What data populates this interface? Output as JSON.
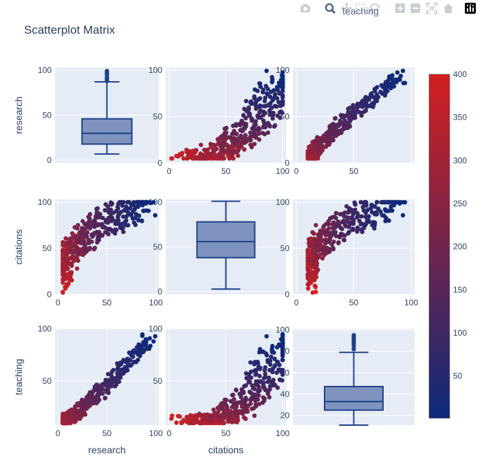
{
  "title": "Scatterplot Matrix",
  "modebar": {
    "hover_label": "teaching",
    "icons": [
      "camera-icon",
      "zoom-icon",
      "pan-icon",
      "box-select-icon",
      "lasso-icon",
      "zoom-in-icon",
      "zoom-out-icon",
      "autoscale-icon",
      "reset-axes-icon",
      "plotly-logo-icon"
    ]
  },
  "chart_data": {
    "type": "scatter-matrix",
    "title": "Scatterplot Matrix",
    "dimensions": [
      "research",
      "citations",
      "teaching"
    ],
    "diagonal": "box",
    "colors": {
      "low": "#0d2a7a",
      "high": "#d41f1f",
      "box": "#1f3f88",
      "box_fill": "#7f93bf",
      "plot_bg": "#e5ecf6",
      "grid": "#ffffff"
    },
    "colorbar": {
      "min": 1,
      "max": 400,
      "ticks": [
        50,
        100,
        150,
        200,
        250,
        300,
        350,
        400
      ]
    },
    "axis_ticks": {
      "research": [
        0,
        50,
        100
      ],
      "citations": [
        0,
        50,
        100
      ],
      "teaching_scatter": [
        50,
        100
      ],
      "teaching_box": [
        20,
        40,
        60,
        80,
        100
      ],
      "research_row": [
        0,
        50,
        100
      ],
      "citations_row": [
        0,
        50,
        100
      ]
    },
    "box_stats": {
      "research": {
        "min": 7,
        "q1": 18,
        "median": 30,
        "q3": 46,
        "max": 87,
        "outliers": [
          88,
          90,
          92,
          95,
          97,
          99
        ]
      },
      "citations": {
        "min": 3,
        "q1": 38,
        "median": 56,
        "q3": 78,
        "max": 101,
        "outliers": []
      },
      "teaching": {
        "min": 11,
        "q1": 25,
        "median": 33,
        "q3": 47,
        "max": 79,
        "outliers": [
          82,
          85,
          87,
          89,
          91,
          93,
          95
        ]
      }
    },
    "n_points": 400,
    "range_note": "research 5–100, citations 2–100, teaching 10–96"
  }
}
